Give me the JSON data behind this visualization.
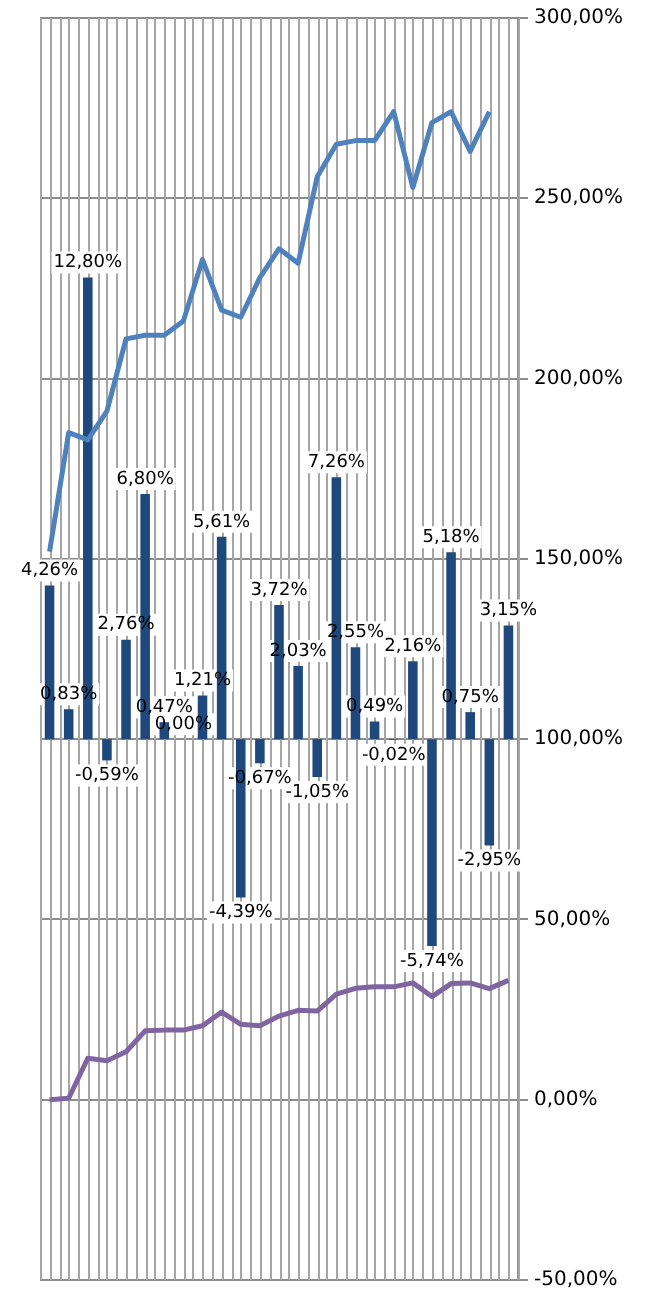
{
  "chart_data": {
    "type": "bar",
    "categories": [
      null,
      null,
      null,
      null,
      null,
      null,
      null,
      null,
      null,
      null,
      null,
      null,
      null,
      null,
      null,
      null,
      null,
      null,
      null,
      null,
      null,
      null,
      null,
      null,
      null
    ],
    "series": [
      {
        "axis": "y",
        "color": "#1f497d",
        "values": [
          4.26,
          0.83,
          12.8,
          -0.59,
          2.76,
          6.8,
          0.47,
          0.0,
          1.21,
          5.61,
          -4.39,
          -0.67,
          3.72,
          2.03,
          -1.05,
          7.26,
          2.55,
          0.49,
          -0.02,
          2.16,
          -5.74,
          5.18,
          0.75,
          -2.95,
          3.15
        ],
        "value_labels": [
          "4,26%",
          "0,83%",
          "12,80%",
          "-0,59%",
          "2,76%",
          "6,80%",
          "0,47%",
          "0,00%",
          "1,21%",
          "5,61%",
          "-4,39%",
          "-0,67%",
          "3,72%",
          "2,03%",
          "-1,05%",
          "7,26%",
          "2,55%",
          "0,49%",
          "-0,02%",
          "2,16%",
          "-5,74%",
          "5,18%",
          "0,75%",
          "-2,95%",
          "3,15%"
        ]
      },
      {
        "type": "line",
        "axis": "y2",
        "color": "#4f81bd",
        "values": [
          152,
          185,
          183,
          191,
          211,
          212,
          212,
          216,
          233,
          219,
          217,
          228,
          236,
          232,
          256,
          265,
          266,
          266,
          274,
          253,
          271,
          274,
          263,
          274,
          null
        ]
      },
      {
        "type": "line",
        "axis": "y2",
        "color": "#8064a2",
        "values": [
          0,
          0.4,
          11.5,
          10.8,
          13.3,
          19.1,
          19.3,
          19.3,
          20.5,
          24.3,
          20.9,
          20.5,
          23.2,
          24.8,
          24.6,
          29.3,
          30.9,
          31.3,
          31.3,
          32.4,
          28.6,
          32.2,
          32.4,
          30.8,
          33.1
        ]
      }
    ],
    "ylim": [
      -15,
      20
    ],
    "y2lim": [
      -50,
      300
    ],
    "y2ticks": [
      {
        "value": -50,
        "label": "-50,00%"
      },
      {
        "value": 0,
        "label": "0,00%"
      },
      {
        "value": 50,
        "label": "50,00%"
      },
      {
        "value": 100,
        "label": "100,00%"
      },
      {
        "value": 150,
        "label": "150,00%"
      },
      {
        "value": 200,
        "label": "200,00%"
      },
      {
        "value": 250,
        "label": "250,00%"
      },
      {
        "value": 300,
        "label": "300,00%"
      }
    ],
    "tick_labels": "y2",
    "grid": true,
    "legend": false,
    "marker": "none",
    "line_style": "solid"
  }
}
